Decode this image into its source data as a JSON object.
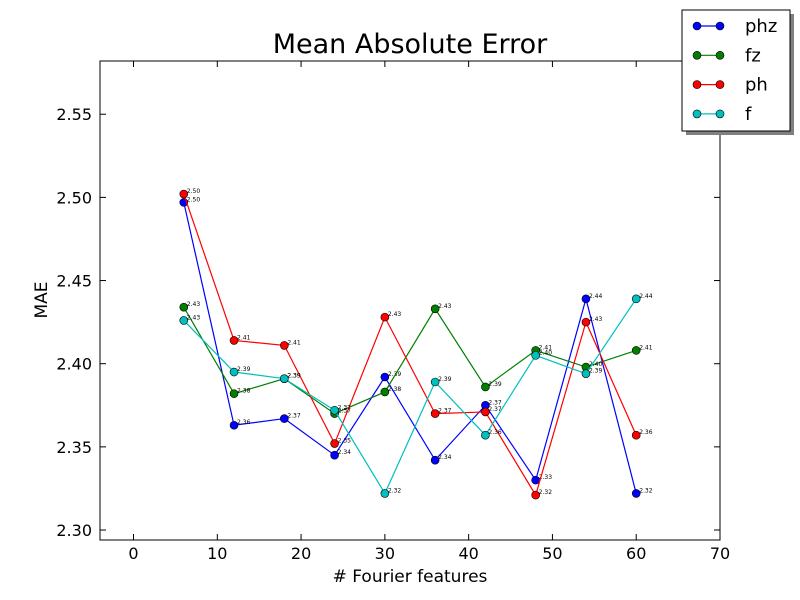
{
  "chart_data": {
    "type": "line",
    "title": "Mean Absolute Error",
    "xlabel": "# Fourier features",
    "ylabel": "MAE",
    "xlim": [
      -4,
      70
    ],
    "ylim": [
      2.294,
      2.582
    ],
    "xticks": [
      0,
      10,
      20,
      30,
      40,
      50,
      60,
      70
    ],
    "yticks": [
      2.3,
      2.35,
      2.4,
      2.45,
      2.5,
      2.55
    ],
    "legend_position": "top-right",
    "grid": false,
    "x": [
      6,
      12,
      18,
      24,
      30,
      36,
      42,
      48,
      54,
      60
    ],
    "series": [
      {
        "name": "phz",
        "color": "#0000ff",
        "values": [
          2.497,
          2.363,
          2.367,
          2.345,
          2.392,
          2.342,
          2.375,
          2.33,
          2.439,
          2.322
        ],
        "labels": [
          "2.50",
          "2.36",
          "2.37",
          "2.34",
          "2.39",
          "2.34",
          "2.37",
          "2.33",
          "2.44",
          "2.32"
        ]
      },
      {
        "name": "fz",
        "color": "#007f00",
        "values": [
          2.434,
          2.382,
          2.391,
          2.37,
          2.383,
          2.433,
          2.386,
          2.408,
          2.398,
          2.408
        ],
        "labels": [
          "2.43",
          "2.38",
          "2.39",
          "2.37",
          "2.38",
          "2.43",
          "2.39",
          "2.41",
          "2.40",
          "2.41"
        ]
      },
      {
        "name": "ph",
        "color": "#ff0000",
        "values": [
          2.502,
          2.414,
          2.411,
          2.352,
          2.428,
          2.37,
          2.371,
          2.321,
          2.425,
          2.357
        ],
        "labels": [
          "2.50",
          "2.41",
          "2.41",
          "2.35",
          "2.43",
          "2.37",
          "2.37",
          "2.32",
          "2.43",
          "2.36"
        ]
      },
      {
        "name": "f",
        "color": "#00bfbf",
        "values": [
          2.426,
          2.395,
          2.391,
          2.372,
          2.322,
          2.389,
          2.357,
          2.405,
          2.394,
          2.439
        ],
        "labels": [
          "2.43",
          "2.39",
          "2.39",
          "2.37",
          "2.32",
          "2.39",
          "2.36",
          "2.40",
          "2.39",
          "2.44"
        ]
      }
    ]
  }
}
